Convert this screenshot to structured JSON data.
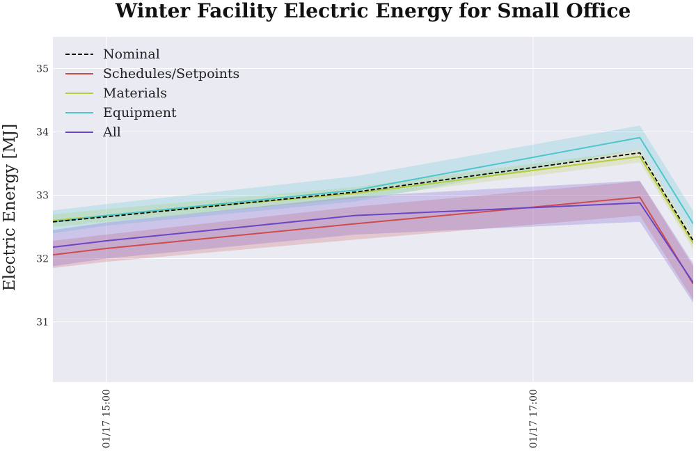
{
  "chart_data": {
    "type": "line",
    "title": "Winter Facility Electric Energy for Small Office",
    "xlabel": "",
    "ylabel": "Electric Energy [MJ]",
    "x": [
      "01/17 14:45",
      "01/17 15:00",
      "01/17 16:10",
      "01/17 17:30",
      "01/17 17:45"
    ],
    "x_ticks": [
      "01/17  15:00",
      "01/17  17:00"
    ],
    "xlim": [
      "01/17 14:45",
      "01/17 17:45"
    ],
    "y_ticks": [
      31,
      32,
      33,
      34,
      35
    ],
    "ylim": [
      30.05,
      35.5
    ],
    "grid": true,
    "legend_position": "top-left",
    "series": [
      {
        "name": "Nominal",
        "color": "#000000",
        "dash": true,
        "values": [
          32.58,
          32.66,
          33.05,
          33.67,
          32.28
        ]
      },
      {
        "name": "Schedules/Setpoints",
        "color": "#cc4c4c",
        "values": [
          32.06,
          32.16,
          32.55,
          32.97,
          31.6
        ],
        "band_lower": [
          31.85,
          31.95,
          32.3,
          32.68,
          31.35
        ],
        "band_upper": [
          32.28,
          32.38,
          32.82,
          33.22,
          31.88
        ]
      },
      {
        "name": "Materials",
        "color": "#b5cc3c",
        "values": [
          32.6,
          32.68,
          33.03,
          33.61,
          32.24
        ],
        "band_lower": [
          32.5,
          32.58,
          32.95,
          33.52,
          32.15
        ],
        "band_upper": [
          32.7,
          32.78,
          33.13,
          33.72,
          32.35
        ]
      },
      {
        "name": "Equipment",
        "color": "#4cc6cc",
        "values": [
          32.58,
          32.68,
          33.08,
          33.91,
          32.55
        ],
        "band_lower": [
          32.4,
          32.52,
          32.9,
          33.72,
          32.35
        ],
        "band_upper": [
          32.76,
          32.86,
          33.3,
          34.1,
          32.75
        ]
      },
      {
        "name": "All",
        "color": "#6a45c8",
        "values": [
          32.18,
          32.28,
          32.68,
          32.88,
          31.62
        ],
        "band_lower": [
          31.88,
          32.0,
          32.38,
          32.58,
          31.3
        ],
        "band_upper": [
          32.45,
          32.57,
          32.98,
          33.23,
          31.92
        ]
      }
    ]
  }
}
